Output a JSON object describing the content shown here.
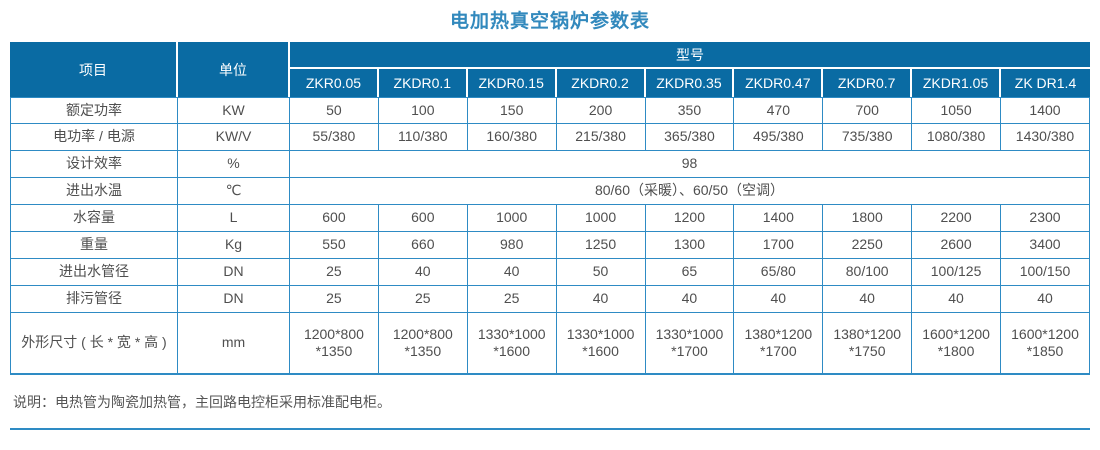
{
  "title": "电加热真空锅炉参数表",
  "colors": {
    "header_bg": "#0a6ba3",
    "border_blue": "#2e8bc4",
    "title_blue": "#3289bd",
    "body_text": "#4f4f4f"
  },
  "table": {
    "header": {
      "item_label": "项目",
      "unit_label": "单位",
      "model_group_label": "型号",
      "models": [
        "ZKR0.05",
        "ZKDR0.1",
        "ZKDR0.15",
        "ZKDR0.2",
        "ZKDR0.35",
        "ZKDR0.47",
        "ZKDR0.7",
        "ZKDR1.05",
        "ZK DR1.4"
      ]
    },
    "rows": [
      {
        "item": "额定功率",
        "unit": "KW",
        "values": [
          "50",
          "100",
          "150",
          "200",
          "350",
          "470",
          "700",
          "1050",
          "1400"
        ]
      },
      {
        "item": "电功率 / 电源",
        "unit": "KW/V",
        "values": [
          "55/380",
          "110/380",
          "160/380",
          "215/380",
          "365/380",
          "495/380",
          "735/380",
          "1080/380",
          "1430/380"
        ]
      },
      {
        "item": "设计效率",
        "unit": "%",
        "merged": "98"
      },
      {
        "item": "进出水温",
        "unit": "℃",
        "merged": "80/60（采暖）、60/50（空调）"
      },
      {
        "item": "水容量",
        "unit": "L",
        "values": [
          "600",
          "600",
          "1000",
          "1000",
          "1200",
          "1400",
          "1800",
          "2200",
          "2300"
        ]
      },
      {
        "item": "重量",
        "unit": "Kg",
        "values": [
          "550",
          "660",
          "980",
          "1250",
          "1300",
          "1700",
          "2250",
          "2600",
          "3400"
        ]
      },
      {
        "item": "进出水管径",
        "unit": "DN",
        "values": [
          "25",
          "40",
          "40",
          "50",
          "65",
          "65/80",
          "80/100",
          "100/125",
          "100/150"
        ]
      },
      {
        "item": "排污管径",
        "unit": "DN",
        "values": [
          "25",
          "25",
          "25",
          "40",
          "40",
          "40",
          "40",
          "40",
          "40"
        ]
      },
      {
        "item": "外形尺寸 ( 长 * 宽 * 高 )",
        "unit": "mm",
        "values": [
          "1200*800\n*1350",
          "1200*800\n*1350",
          "1330*1000\n*1600",
          "1330*1000\n*1600",
          "1330*1000\n*1700",
          "1380*1200\n*1700",
          "1380*1200\n*1750",
          "1600*1200\n*1800",
          "1600*1200\n*1850"
        ]
      }
    ]
  },
  "note": "说明：电热管为陶瓷加热管，主回路电控柜采用标准配电柜。"
}
